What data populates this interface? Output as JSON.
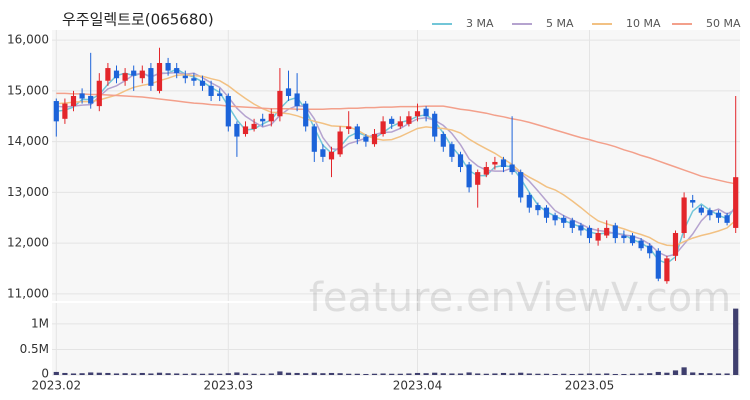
{
  "chart_data": {
    "type": "candlestick",
    "title": "우주일렉트로(065680)",
    "watermark": "feature.enViewV.com",
    "categories": [
      "2023.02",
      null,
      null,
      null,
      null,
      null,
      null,
      null,
      null,
      null,
      null,
      null,
      null,
      null,
      null,
      null,
      null,
      null,
      null,
      null,
      "2023.03",
      null,
      null,
      null,
      null,
      null,
      null,
      null,
      null,
      null,
      null,
      null,
      null,
      null,
      null,
      null,
      null,
      null,
      null,
      null,
      null,
      null,
      "2023.04",
      null,
      null,
      null,
      null,
      null,
      null,
      null,
      null,
      null,
      null,
      null,
      null,
      null,
      null,
      null,
      null,
      null,
      null,
      null,
      "2023.05",
      null,
      null,
      null,
      null,
      null,
      null,
      null,
      null,
      null,
      null,
      null,
      null,
      null,
      null,
      null,
      null,
      null
    ],
    "open": [
      14800,
      14450,
      14700,
      14950,
      14900,
      14700,
      15200,
      15400,
      15200,
      15400,
      15250,
      15450,
      15000,
      15550,
      15450,
      15300,
      15250,
      15200,
      15100,
      14950,
      14900,
      14350,
      14150,
      14250,
      14450,
      14400,
      14500,
      15050,
      14950,
      14750,
      14300,
      13850,
      13650,
      13750,
      14250,
      14300,
      14100,
      13950,
      14150,
      14450,
      14300,
      14350,
      14500,
      14650,
      14550,
      14150,
      13950,
      13750,
      13550,
      13150,
      13350,
      13550,
      13650,
      13550,
      13400,
      12950,
      12750,
      12700,
      12550,
      12500,
      12450,
      12350,
      12300,
      12050,
      12150,
      12350,
      12150,
      12150,
      12050,
      11950,
      11850,
      11250,
      11750,
      12200,
      12850,
      12700,
      12650,
      12600,
      12550,
      12300
    ],
    "high": [
      14850,
      14850,
      15000,
      15050,
      15750,
      15350,
      15550,
      15500,
      15450,
      15500,
      15500,
      15550,
      15850,
      15650,
      15550,
      15400,
      15350,
      15300,
      15200,
      15050,
      14950,
      14400,
      14400,
      14450,
      14550,
      14650,
      15450,
      15400,
      15350,
      14800,
      14350,
      13950,
      13900,
      14300,
      14600,
      14350,
      14150,
      14250,
      14500,
      14500,
      14500,
      14600,
      14750,
      14700,
      14600,
      14200,
      14000,
      13800,
      13600,
      13450,
      13600,
      13700,
      13700,
      14500,
      13450,
      13000,
      12800,
      12750,
      12600,
      12550,
      12500,
      12400,
      12350,
      12300,
      12450,
      12400,
      12250,
      12200,
      12100,
      12000,
      11900,
      11750,
      12250,
      13000,
      12950,
      12750,
      12700,
      12650,
      12600,
      14900
    ],
    "low": [
      14100,
      14350,
      14600,
      14750,
      14650,
      14600,
      15100,
      15150,
      15100,
      15000,
      15150,
      15000,
      14950,
      15300,
      15250,
      15150,
      15100,
      15000,
      14800,
      14800,
      14200,
      13700,
      14100,
      14200,
      14300,
      14300,
      14400,
      14800,
      14600,
      14200,
      13600,
      13600,
      13300,
      13700,
      14150,
      13950,
      13900,
      13900,
      14100,
      14250,
      14250,
      14300,
      14400,
      14400,
      14000,
      13800,
      13600,
      13400,
      13000,
      12700,
      13300,
      13450,
      13400,
      13350,
      12800,
      12600,
      12550,
      12400,
      12350,
      12300,
      12200,
      12150,
      12000,
      11950,
      12100,
      12000,
      12000,
      11950,
      11850,
      11700,
      11250,
      11200,
      11650,
      12100,
      12700,
      12550,
      12450,
      12400,
      12350,
      12200
    ],
    "close": [
      14400,
      14750,
      14900,
      14850,
      14750,
      15200,
      15450,
      15250,
      15350,
      15300,
      15400,
      15100,
      15550,
      15400,
      15350,
      15250,
      15200,
      15100,
      14900,
      14900,
      14300,
      14100,
      14300,
      14350,
      14400,
      14550,
      15000,
      14900,
      14700,
      14300,
      13800,
      13700,
      13800,
      14200,
      14300,
      14050,
      14000,
      14150,
      14400,
      14350,
      14400,
      14500,
      14600,
      14500,
      14100,
      13900,
      13700,
      13500,
      13100,
      13400,
      13500,
      13600,
      13500,
      13400,
      12900,
      12700,
      12650,
      12500,
      12450,
      12400,
      12300,
      12250,
      12100,
      12200,
      12300,
      12100,
      12100,
      12000,
      11900,
      11800,
      11300,
      11700,
      12200,
      12900,
      12800,
      12600,
      12550,
      12500,
      12400,
      13300
    ],
    "volume": [
      60000,
      40000,
      30000,
      35000,
      50000,
      45000,
      40000,
      30000,
      35000,
      30000,
      40000,
      30000,
      45000,
      35000,
      30000,
      25000,
      30000,
      25000,
      30000,
      25000,
      35000,
      50000,
      30000,
      25000,
      25000,
      30000,
      70000,
      45000,
      40000,
      35000,
      45000,
      35000,
      40000,
      35000,
      25000,
      25000,
      20000,
      25000,
      30000,
      25000,
      25000,
      30000,
      40000,
      35000,
      45000,
      35000,
      30000,
      30000,
      50000,
      30000,
      25000,
      30000,
      40000,
      30000,
      45000,
      30000,
      25000,
      25000,
      20000,
      25000,
      20000,
      25000,
      30000,
      25000,
      30000,
      20000,
      20000,
      25000,
      30000,
      35000,
      60000,
      45000,
      90000,
      150000,
      50000,
      40000,
      35000,
      30000,
      30000,
      1300000
    ],
    "up_color": "#e3262b",
    "down_color": "#1c63d9",
    "volume_color": "#3f3f6e",
    "series": [
      {
        "name": "3 MA",
        "color": "#72c6d8",
        "values": [
          14600,
          14620,
          14680,
          14830,
          14830,
          14930,
          15130,
          15300,
          15350,
          15300,
          15350,
          15270,
          15350,
          15350,
          15430,
          15330,
          15270,
          15180,
          15070,
          14970,
          14700,
          14430,
          14230,
          14250,
          14350,
          14430,
          14650,
          14820,
          14870,
          14630,
          14270,
          13930,
          13770,
          13900,
          14100,
          14180,
          14120,
          14070,
          14180,
          14300,
          14380,
          14420,
          14500,
          14530,
          14400,
          14170,
          13900,
          13700,
          13430,
          13330,
          13330,
          13500,
          13530,
          13500,
          13270,
          13000,
          12750,
          12620,
          12530,
          12450,
          12380,
          12320,
          12220,
          12180,
          12200,
          12200,
          12170,
          12070,
          12000,
          11900,
          11670,
          11600,
          11730,
          12270,
          12630,
          12770,
          12650,
          12550,
          12480,
          12730
        ]
      },
      {
        "name": "5 MA",
        "color": "#b5a3cf",
        "values": [
          14700,
          14680,
          14700,
          14720,
          14730,
          14890,
          15040,
          15100,
          15200,
          15320,
          15350,
          15280,
          15340,
          15350,
          15360,
          15330,
          15350,
          15260,
          15160,
          15070,
          14880,
          14660,
          14500,
          14390,
          14290,
          14340,
          14520,
          14640,
          14710,
          14690,
          14450,
          14080,
          13860,
          13840,
          13960,
          14010,
          14070,
          14140,
          14180,
          14190,
          14260,
          14360,
          14450,
          14470,
          14420,
          14320,
          14160,
          13940,
          13660,
          13520,
          13440,
          13420,
          13420,
          13480,
          13380,
          13220,
          13030,
          12830,
          12640,
          12540,
          12460,
          12380,
          12290,
          12250,
          12230,
          12190,
          12160,
          12140,
          12080,
          11980,
          11820,
          11740,
          11780,
          11980,
          12180,
          12440,
          12610,
          12670,
          12570,
          12670
        ]
      },
      {
        "name": "10 MA",
        "color": "#f2c183",
        "values": [
          14750,
          14760,
          14780,
          14790,
          14790,
          14820,
          14870,
          14920,
          15000,
          15070,
          15110,
          15140,
          15200,
          15250,
          15310,
          15320,
          15300,
          15290,
          15240,
          15200,
          15100,
          14970,
          14850,
          14740,
          14650,
          14580,
          14570,
          14550,
          14510,
          14450,
          14400,
          14360,
          14310,
          14300,
          14290,
          14230,
          14130,
          14060,
          14030,
          14040,
          14100,
          14180,
          14260,
          14290,
          14270,
          14260,
          14230,
          14170,
          14050,
          13950,
          13860,
          13770,
          13660,
          13550,
          13400,
          13300,
          13210,
          13110,
          13050,
          12950,
          12830,
          12700,
          12560,
          12440,
          12380,
          12330,
          12280,
          12220,
          12170,
          12110,
          12010,
          11960,
          11950,
          12030,
          12100,
          12150,
          12190,
          12240,
          12300,
          12450
        ]
      },
      {
        "name": "50 MA",
        "color": "#f3a08b",
        "values": [
          14950,
          14950,
          14940,
          14940,
          14930,
          14930,
          14920,
          14910,
          14900,
          14890,
          14880,
          14860,
          14840,
          14820,
          14800,
          14780,
          14760,
          14750,
          14730,
          14720,
          14700,
          14690,
          14680,
          14670,
          14660,
          14650,
          14650,
          14650,
          14640,
          14640,
          14640,
          14640,
          14650,
          14650,
          14660,
          14660,
          14670,
          14670,
          14680,
          14680,
          14690,
          14690,
          14690,
          14700,
          14700,
          14700,
          14670,
          14640,
          14620,
          14590,
          14560,
          14520,
          14490,
          14450,
          14420,
          14380,
          14330,
          14280,
          14230,
          14180,
          14130,
          14080,
          14040,
          13990,
          13950,
          13900,
          13840,
          13790,
          13730,
          13680,
          13620,
          13560,
          13500,
          13440,
          13380,
          13320,
          13280,
          13240,
          13200,
          13170
        ]
      }
    ],
    "ylim": [
      10860,
      16200
    ],
    "yticks": [
      {
        "value": 11000,
        "label": "11,000"
      },
      {
        "value": 12000,
        "label": "12,000"
      },
      {
        "value": 13000,
        "label": "13,000"
      },
      {
        "value": 14000,
        "label": "14,000"
      },
      {
        "value": 15000,
        "label": "15,000"
      },
      {
        "value": 16000,
        "label": "16,000"
      }
    ],
    "volume_ylim": [
      0,
      1410000
    ],
    "volume_yticks": [
      0,
      {
        "value": 500000,
        "label": "0.5M"
      },
      {
        "value": 1000000,
        "label": "1M"
      }
    ],
    "grid": true
  }
}
